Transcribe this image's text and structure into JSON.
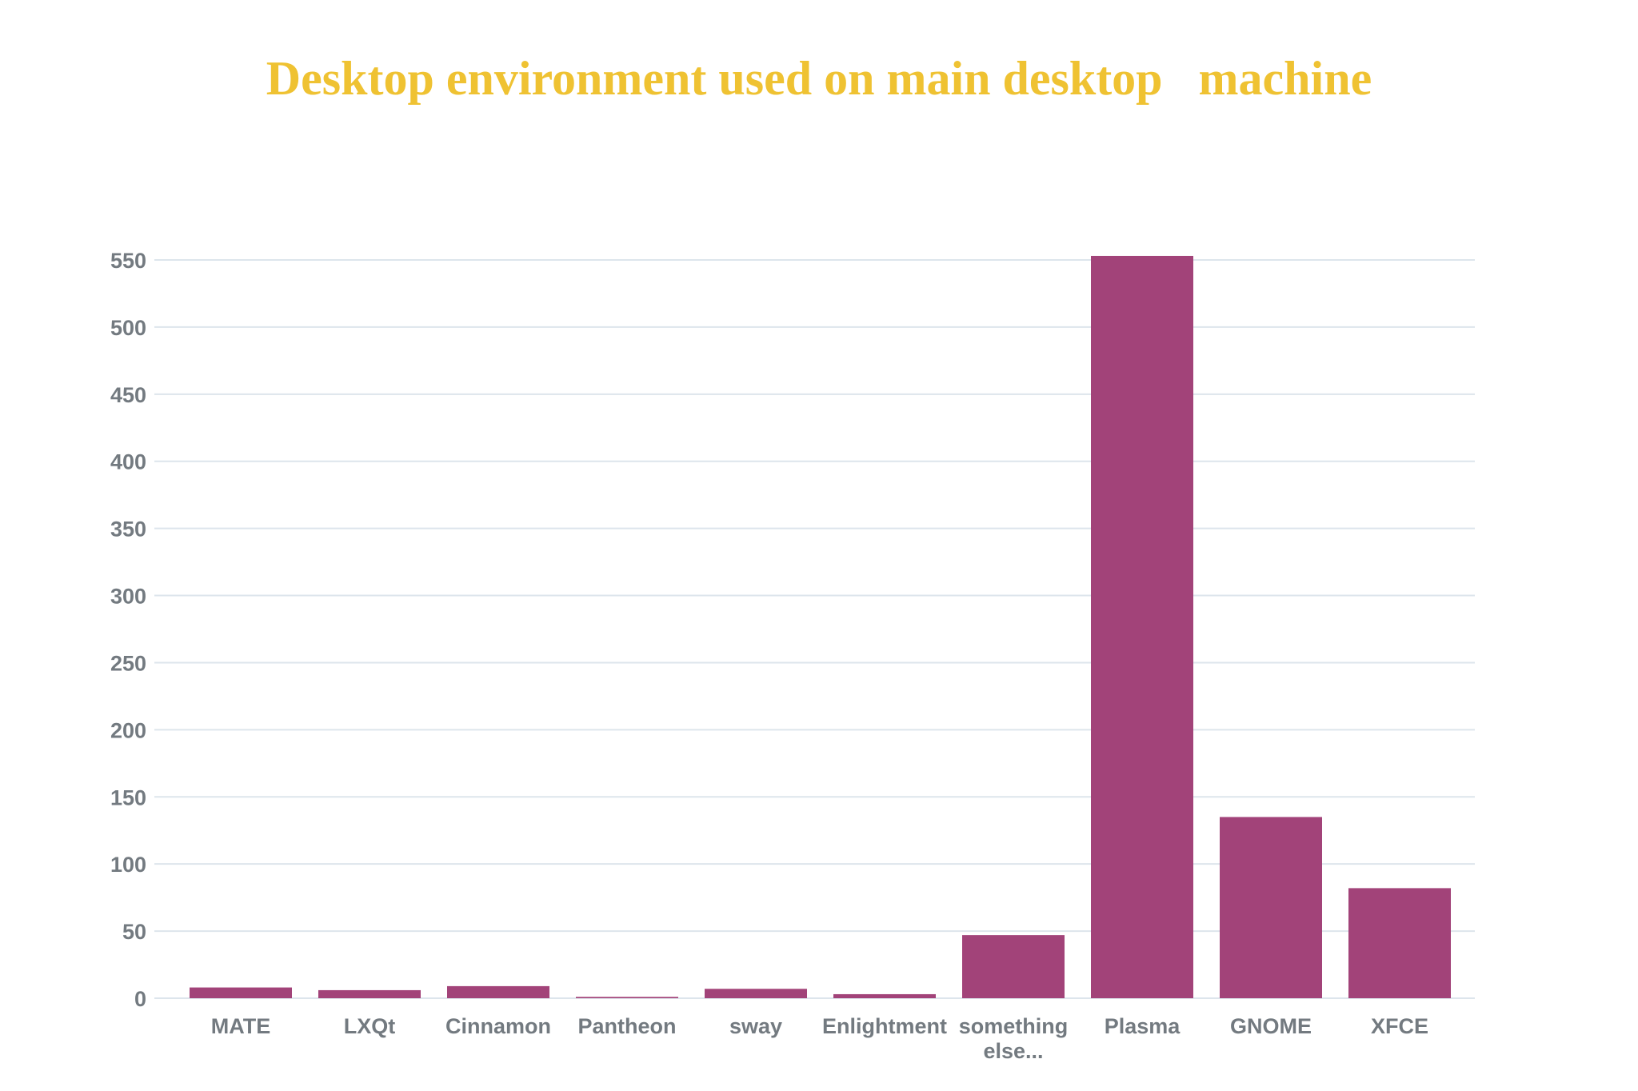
{
  "chart_data": {
    "type": "bar",
    "title": "Desktop environment used on main desktop   machine",
    "xlabel": "",
    "ylabel": "",
    "categories": [
      "MATE",
      "LXQt",
      "Cinnamon",
      "Pantheon",
      "sway",
      "Enlightment",
      "something else...",
      "Plasma",
      "GNOME",
      "XFCE"
    ],
    "category_lines": [
      [
        "MATE"
      ],
      [
        "LXQt"
      ],
      [
        "Cinnamon"
      ],
      [
        "Pantheon"
      ],
      [
        "sway"
      ],
      [
        "Enlightment"
      ],
      [
        "something",
        "else..."
      ],
      [
        "Plasma"
      ],
      [
        "GNOME"
      ],
      [
        "XFCE"
      ]
    ],
    "values": [
      8,
      6,
      9,
      1,
      7,
      3,
      47,
      553,
      135,
      82
    ],
    "ylim": [
      0,
      550
    ],
    "yticks": [
      0,
      50,
      100,
      150,
      200,
      250,
      300,
      350,
      400,
      450,
      500,
      550
    ],
    "grid": true,
    "legend": "none",
    "colors": {
      "bar": "#A24379",
      "title": "#EFC232",
      "grid": "#dde5ec",
      "tick_label": "#737a80"
    }
  }
}
